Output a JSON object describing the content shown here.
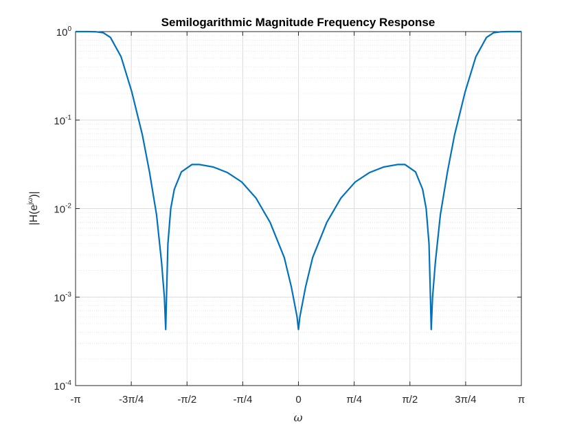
{
  "chart_data": {
    "type": "line",
    "title": "Semilogarithmic Magnitude Frequency Response",
    "xlabel": "ω",
    "ylabel_parts": {
      "base": "|H(e",
      "exponent": "jω",
      "close": ")|"
    },
    "xlim": [
      -3.14159,
      3.14159
    ],
    "ylim": [
      0.0001,
      1
    ],
    "yscale": "log",
    "grid": true,
    "minor_grid": true,
    "x_ticks": [
      {
        "value": -3.14159,
        "label": "-π"
      },
      {
        "value": -2.35619,
        "label": "-3π/4"
      },
      {
        "value": -1.5708,
        "label": "-π/2"
      },
      {
        "value": -0.7854,
        "label": "-π/4"
      },
      {
        "value": 0,
        "label": "0"
      },
      {
        "value": 0.7854,
        "label": "π/4"
      },
      {
        "value": 1.5708,
        "label": "π/2"
      },
      {
        "value": 2.35619,
        "label": "3π/4"
      },
      {
        "value": 3.14159,
        "label": "π"
      }
    ],
    "y_ticks": [
      {
        "value": 1,
        "base": "10",
        "exp": "0"
      },
      {
        "value": 0.1,
        "base": "10",
        "exp": "-1"
      },
      {
        "value": 0.01,
        "base": "10",
        "exp": "-2"
      },
      {
        "value": 0.001,
        "base": "10",
        "exp": "-3"
      },
      {
        "value": 0.0001,
        "base": "10",
        "exp": "-4"
      }
    ],
    "series": [
      {
        "color": "#0072BD",
        "x": [
          -3.1416,
          -2.95,
          -2.85,
          -2.75,
          -2.65,
          -2.5,
          -2.35,
          -2.2,
          -2.1,
          -2.0,
          -1.93,
          -1.89,
          -1.871,
          -1.86,
          -1.84,
          -1.8,
          -1.75,
          -1.65,
          -1.5,
          -1.4,
          -1.2,
          -1.0,
          -0.8,
          -0.6,
          -0.4,
          -0.2,
          -0.1,
          -0.02,
          0.0,
          0.02,
          0.1,
          0.2,
          0.4,
          0.6,
          0.8,
          1.0,
          1.2,
          1.4,
          1.5,
          1.65,
          1.75,
          1.8,
          1.84,
          1.86,
          1.871,
          1.89,
          1.93,
          2.0,
          2.1,
          2.2,
          2.35,
          2.5,
          2.65,
          2.75,
          2.85,
          2.95,
          3.1416
        ],
        "y": [
          1.0,
          1.0,
          0.995,
          0.97,
          0.86,
          0.52,
          0.21,
          0.068,
          0.026,
          0.0085,
          0.0025,
          0.001,
          0.00043,
          0.001,
          0.004,
          0.01,
          0.0165,
          0.026,
          0.0315,
          0.0315,
          0.0295,
          0.0255,
          0.02,
          0.0132,
          0.007,
          0.0028,
          0.0013,
          0.0006,
          0.00043,
          0.0006,
          0.0013,
          0.0028,
          0.007,
          0.0132,
          0.02,
          0.0255,
          0.0295,
          0.0315,
          0.0315,
          0.026,
          0.0165,
          0.01,
          0.004,
          0.001,
          0.00043,
          0.001,
          0.0025,
          0.0085,
          0.026,
          0.068,
          0.21,
          0.52,
          0.86,
          0.97,
          0.995,
          1.0,
          1.0
        ]
      }
    ]
  }
}
